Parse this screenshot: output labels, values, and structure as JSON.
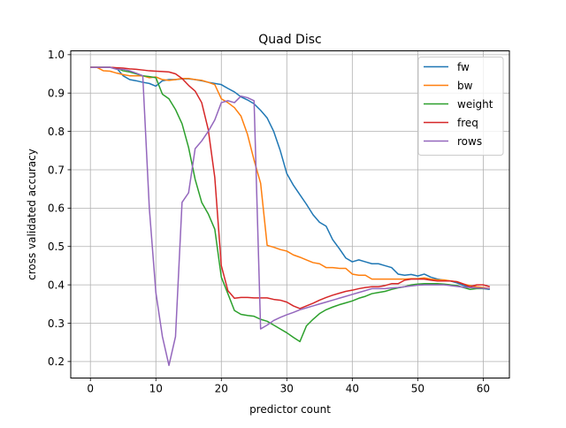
{
  "chart_data": {
    "type": "line",
    "title": "Quad Disc",
    "xlabel": "predictor count",
    "ylabel": "cross validated accuracy",
    "xlim": [
      -3,
      64
    ],
    "ylim": [
      0.157,
      1.01
    ],
    "xticks": [
      0,
      10,
      20,
      30,
      40,
      50,
      60
    ],
    "yticks": [
      0.2,
      0.3,
      0.4,
      0.5,
      0.6,
      0.7,
      0.8,
      0.9,
      1.0
    ],
    "xtick_labels": [
      "0",
      "10",
      "20",
      "30",
      "40",
      "50",
      "60"
    ],
    "ytick_labels": [
      "0.2",
      "0.3",
      "0.4",
      "0.5",
      "0.6",
      "0.7",
      "0.8",
      "0.9",
      "1.0"
    ],
    "grid": true,
    "legend_position": "top-right",
    "series": [
      {
        "name": "fw",
        "color": "#1f77b4",
        "x": [
          0,
          1,
          2,
          3,
          4,
          5,
          6,
          7,
          8,
          9,
          10,
          11,
          12,
          13,
          14,
          15,
          16,
          17,
          18,
          19,
          20,
          21,
          22,
          23,
          24,
          25,
          26,
          27,
          28,
          29,
          30,
          31,
          32,
          33,
          34,
          35,
          36,
          37,
          38,
          39,
          40,
          41,
          42,
          43,
          44,
          45,
          46,
          47,
          48,
          49,
          50,
          51,
          52,
          53,
          54,
          55,
          56,
          57,
          58,
          59,
          60,
          61
        ],
        "y": [
          0.967,
          0.967,
          0.967,
          0.967,
          0.965,
          0.945,
          0.935,
          0.932,
          0.928,
          0.925,
          0.918,
          0.932,
          0.935,
          0.935,
          0.937,
          0.937,
          0.935,
          0.932,
          0.928,
          0.925,
          0.922,
          0.912,
          0.903,
          0.89,
          0.882,
          0.872,
          0.855,
          0.835,
          0.8,
          0.75,
          0.69,
          0.66,
          0.635,
          0.61,
          0.583,
          0.563,
          0.553,
          0.518,
          0.495,
          0.47,
          0.46,
          0.465,
          0.46,
          0.455,
          0.455,
          0.45,
          0.445,
          0.428,
          0.425,
          0.427,
          0.423,
          0.428,
          0.42,
          0.415,
          0.412,
          0.41,
          0.405,
          0.398,
          0.393,
          0.392,
          0.39,
          0.388
        ]
      },
      {
        "name": "bw",
        "color": "#ff7f0e",
        "x": [
          0,
          1,
          2,
          3,
          4,
          5,
          6,
          7,
          8,
          9,
          10,
          11,
          12,
          13,
          14,
          15,
          16,
          17,
          18,
          19,
          20,
          21,
          22,
          23,
          24,
          25,
          26,
          27,
          28,
          29,
          30,
          31,
          32,
          33,
          34,
          35,
          36,
          37,
          38,
          39,
          40,
          41,
          42,
          43,
          44,
          45,
          46,
          47,
          48,
          49,
          50,
          51,
          52,
          53,
          54,
          55,
          56,
          57,
          58,
          59,
          60,
          61
        ],
        "y": [
          0.967,
          0.967,
          0.958,
          0.957,
          0.952,
          0.948,
          0.945,
          0.945,
          0.945,
          0.94,
          0.942,
          0.935,
          0.933,
          0.935,
          0.938,
          0.938,
          0.935,
          0.933,
          0.928,
          0.922,
          0.885,
          0.875,
          0.862,
          0.84,
          0.792,
          0.725,
          0.665,
          0.503,
          0.498,
          0.492,
          0.488,
          0.478,
          0.472,
          0.465,
          0.458,
          0.455,
          0.445,
          0.445,
          0.443,
          0.443,
          0.428,
          0.425,
          0.425,
          0.415,
          0.415,
          0.415,
          0.415,
          0.415,
          0.415,
          0.416,
          0.416,
          0.418,
          0.415,
          0.413,
          0.413,
          0.41,
          0.408,
          0.402,
          0.398,
          0.395,
          0.393,
          0.39
        ]
      },
      {
        "name": "weight",
        "color": "#2ca02c",
        "x": [
          0,
          1,
          2,
          3,
          4,
          5,
          6,
          7,
          8,
          9,
          10,
          11,
          12,
          13,
          14,
          15,
          16,
          17,
          18,
          19,
          20,
          21,
          22,
          23,
          24,
          25,
          26,
          27,
          28,
          29,
          30,
          31,
          32,
          33,
          34,
          35,
          36,
          37,
          38,
          39,
          40,
          41,
          42,
          43,
          44,
          45,
          46,
          47,
          48,
          49,
          50,
          51,
          52,
          53,
          54,
          55,
          56,
          57,
          58,
          59,
          60,
          61
        ],
        "y": [
          0.967,
          0.967,
          0.967,
          0.967,
          0.965,
          0.958,
          0.955,
          0.95,
          0.945,
          0.943,
          0.94,
          0.897,
          0.885,
          0.857,
          0.82,
          0.758,
          0.675,
          0.615,
          0.585,
          0.545,
          0.42,
          0.377,
          0.333,
          0.323,
          0.32,
          0.318,
          0.31,
          0.305,
          0.295,
          0.285,
          0.275,
          0.263,
          0.252,
          0.293,
          0.31,
          0.325,
          0.335,
          0.342,
          0.348,
          0.353,
          0.358,
          0.365,
          0.37,
          0.377,
          0.38,
          0.383,
          0.388,
          0.392,
          0.395,
          0.4,
          0.402,
          0.403,
          0.403,
          0.403,
          0.402,
          0.4,
          0.398,
          0.393,
          0.388,
          0.39,
          0.39,
          0.39
        ]
      },
      {
        "name": "freq",
        "color": "#d62728",
        "x": [
          0,
          1,
          2,
          3,
          4,
          5,
          6,
          7,
          8,
          9,
          10,
          11,
          12,
          13,
          14,
          15,
          16,
          17,
          18,
          19,
          20,
          21,
          22,
          23,
          24,
          25,
          26,
          27,
          28,
          29,
          30,
          31,
          32,
          33,
          34,
          35,
          36,
          37,
          38,
          39,
          40,
          41,
          42,
          43,
          44,
          45,
          46,
          47,
          48,
          49,
          50,
          51,
          52,
          53,
          54,
          55,
          56,
          57,
          58,
          59,
          60,
          61
        ],
        "y": [
          0.967,
          0.967,
          0.967,
          0.967,
          0.966,
          0.965,
          0.963,
          0.962,
          0.96,
          0.958,
          0.957,
          0.956,
          0.955,
          0.95,
          0.938,
          0.92,
          0.905,
          0.875,
          0.805,
          0.68,
          0.45,
          0.385,
          0.365,
          0.367,
          0.367,
          0.366,
          0.366,
          0.366,
          0.362,
          0.36,
          0.355,
          0.345,
          0.338,
          0.345,
          0.352,
          0.36,
          0.367,
          0.373,
          0.378,
          0.383,
          0.386,
          0.39,
          0.393,
          0.395,
          0.395,
          0.398,
          0.403,
          0.403,
          0.412,
          0.415,
          0.415,
          0.415,
          0.412,
          0.41,
          0.41,
          0.41,
          0.408,
          0.402,
          0.395,
          0.4,
          0.4,
          0.395
        ]
      },
      {
        "name": "rows",
        "color": "#9467bd",
        "x": [
          0,
          1,
          2,
          3,
          4,
          5,
          6,
          7,
          8,
          9,
          10,
          11,
          12,
          13,
          14,
          15,
          16,
          17,
          18,
          19,
          20,
          21,
          22,
          23,
          24,
          25,
          26,
          27,
          28,
          29,
          30,
          31,
          32,
          33,
          34,
          35,
          36,
          37,
          38,
          39,
          40,
          41,
          42,
          43,
          44,
          45,
          46,
          47,
          48,
          49,
          50,
          51,
          52,
          53,
          54,
          55,
          56,
          57,
          58,
          59,
          60,
          61
        ],
        "y": [
          0.967,
          0.967,
          0.967,
          0.967,
          0.962,
          0.962,
          0.958,
          0.952,
          0.945,
          0.6,
          0.38,
          0.265,
          0.19,
          0.265,
          0.615,
          0.64,
          0.755,
          0.775,
          0.8,
          0.83,
          0.875,
          0.88,
          0.875,
          0.892,
          0.888,
          0.88,
          0.285,
          0.295,
          0.307,
          0.315,
          0.322,
          0.328,
          0.335,
          0.34,
          0.345,
          0.35,
          0.355,
          0.36,
          0.365,
          0.37,
          0.375,
          0.38,
          0.385,
          0.39,
          0.39,
          0.39,
          0.392,
          0.393,
          0.395,
          0.397,
          0.399,
          0.4,
          0.4,
          0.4,
          0.4,
          0.398,
          0.396,
          0.394,
          0.393,
          0.392,
          0.391,
          0.39
        ]
      }
    ]
  }
}
